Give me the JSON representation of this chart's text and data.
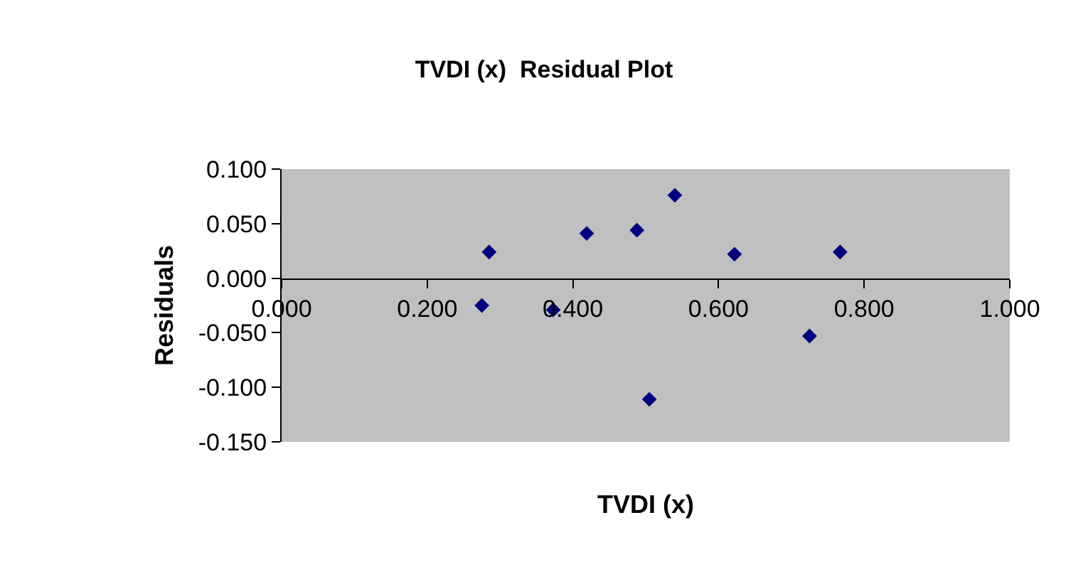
{
  "chart_data": {
    "type": "scatter",
    "title": "TVDI (x)  Residual Plot",
    "xlabel": "TVDI (x)",
    "ylabel": "Residuals",
    "x": [
      0.275,
      0.285,
      0.373,
      0.419,
      0.488,
      0.505,
      0.54,
      0.622,
      0.725,
      0.767
    ],
    "series": [
      {
        "color": "#000080",
        "values": [
          -0.025,
          0.024,
          -0.029,
          0.041,
          0.044,
          -0.111,
          0.076,
          0.022,
          -0.053,
          0.024
        ]
      }
    ],
    "xlim": [
      0,
      1
    ],
    "xticks": [
      {
        "value": 0,
        "label": "0.000"
      },
      {
        "value": 0.2,
        "label": "0.200"
      },
      {
        "value": 0.4,
        "label": "0.400"
      },
      {
        "value": 0.6,
        "label": "0.600"
      },
      {
        "value": 0.8,
        "label": "0.800"
      },
      {
        "value": 1,
        "label": "1.000"
      }
    ],
    "ylim": [
      -0.15,
      0.1
    ],
    "yticks": [
      {
        "value": -0.15,
        "label": "-0.150"
      },
      {
        "value": -0.1,
        "label": "-0.100"
      },
      {
        "value": -0.05,
        "label": "-0.050"
      },
      {
        "value": 0,
        "label": "0.000"
      },
      {
        "value": 0.05,
        "label": "0.050"
      },
      {
        "value": 0.1,
        "label": "0.100"
      }
    ],
    "grid": false,
    "legend": false,
    "marker": "diamond"
  }
}
